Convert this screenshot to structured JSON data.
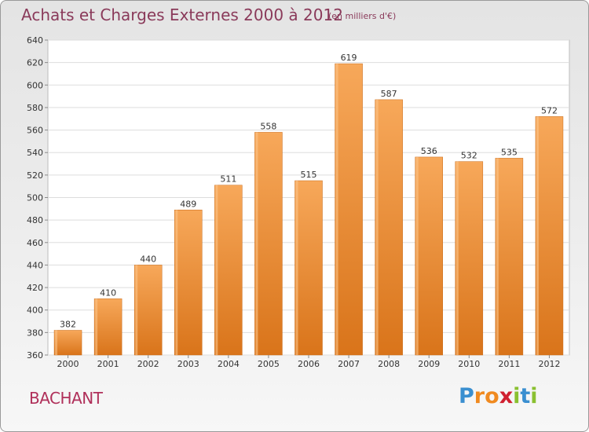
{
  "header": {
    "title": "Achats et Charges Externes 2000 à 2012",
    "subtitle": "(en milliers d'€)"
  },
  "footer": {
    "town": "BACHANT",
    "logo": {
      "letters": [
        "P",
        "r",
        "o",
        "x",
        "i",
        "t",
        "i"
      ],
      "colors": [
        "#3a8fd0",
        "#f08a20",
        "#f08a20",
        "#d02030",
        "#8ac030",
        "#3a8fd0",
        "#8ac030"
      ]
    }
  },
  "chart_data": {
    "type": "bar",
    "title": "Achats et Charges Externes 2000 à 2012",
    "subtitle": "(en milliers d'€)",
    "categories": [
      "2000",
      "2001",
      "2002",
      "2003",
      "2004",
      "2005",
      "2006",
      "2007",
      "2008",
      "2009",
      "2010",
      "2011",
      "2012"
    ],
    "values": [
      382,
      410,
      440,
      489,
      511,
      558,
      515,
      619,
      587,
      536,
      532,
      535,
      572
    ],
    "ylim": [
      360,
      640
    ],
    "yticks": [
      360,
      380,
      400,
      420,
      440,
      460,
      480,
      500,
      520,
      540,
      560,
      580,
      600,
      620,
      640
    ],
    "grid": true,
    "bar_color": "#f0902a"
  }
}
